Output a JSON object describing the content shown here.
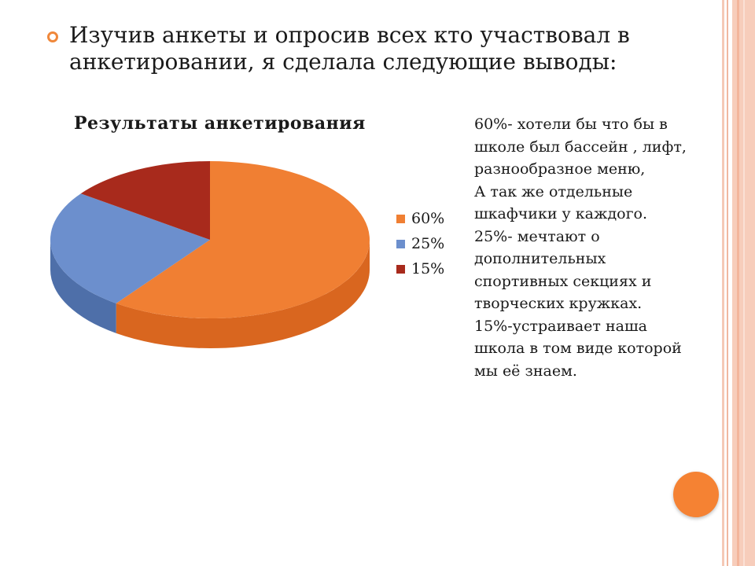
{
  "bullet": {
    "text": "Изучив анкеты и опросив всех кто  участвовал в анкетировании, я сделала следующие выводы:"
  },
  "chart_data": {
    "type": "pie",
    "title": "Результаты анкетирования",
    "categories": [
      "60%",
      "25%",
      "15%"
    ],
    "values": [
      60,
      25,
      15
    ],
    "colors": [
      "#f07f33",
      "#6c8fcd",
      "#a82a1c"
    ],
    "side_colors": [
      "#d9661f",
      "#4e6fa9",
      "#7e1d12"
    ],
    "legend_position": "right",
    "style": "3d"
  },
  "side_note": {
    "text": "60%- хотели бы что бы в школе был бассейн , лифт, разнообразное меню,\nА так же отдельные шкафчики у каждого.\n25%- мечтают о дополнительных спортивных секциях и творческих кружках.\n15%-устраивает наша школа в том виде которой мы её знаем."
  },
  "decor": {
    "accent_color": "#f0883b",
    "circle_color": "#f58233",
    "icons": [
      "bullet-ring-icon",
      "decorative-circle-icon"
    ]
  }
}
